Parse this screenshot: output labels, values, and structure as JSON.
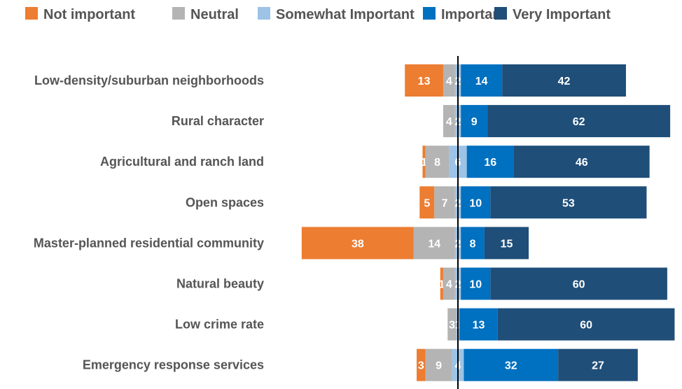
{
  "chart_data": {
    "type": "bar",
    "orientation": "horizontal-diverging",
    "stacked": true,
    "legend_position": "top",
    "categories": [
      "Low-density/suburban neighborhoods",
      "Rural character",
      "Agricultural and ranch land",
      "Open spaces",
      "Master-planned residential community",
      "Natural beauty",
      "Low crime rate",
      "Emergency response services"
    ],
    "series": [
      {
        "name": "Not important",
        "color": "#ED7D31",
        "values": [
          13,
          0,
          1,
          5,
          38,
          1,
          0,
          3
        ],
        "labels": [
          "13",
          "",
          "1",
          "5",
          "38",
          "1",
          "",
          "3"
        ]
      },
      {
        "name": "Neutral",
        "color": "#B4B4B4",
        "values": [
          4,
          4,
          8,
          7,
          14,
          4,
          3,
          9
        ],
        "labels": [
          "4",
          "4",
          "8",
          "7",
          "14",
          "4",
          "3",
          "9"
        ]
      },
      {
        "name": "Somewhat Important",
        "color": "#9DC3E6",
        "values": [
          2,
          2,
          6,
          2,
          2,
          2,
          1,
          4
        ],
        "labels": [
          "2",
          "2",
          "6",
          "2",
          "2",
          "2",
          "1",
          "4"
        ]
      },
      {
        "name": "Important",
        "color": "#0070C0",
        "values": [
          14,
          9,
          16,
          10,
          8,
          10,
          13,
          32
        ],
        "labels": [
          "14",
          "9",
          "16",
          "10",
          "8",
          "10",
          "13",
          "32"
        ]
      },
      {
        "name": "Very Important",
        "color": "#1F4E79",
        "values": [
          42,
          62,
          46,
          53,
          15,
          60,
          60,
          27
        ],
        "labels": [
          "42",
          "62",
          "46",
          "53",
          "15",
          "60",
          "60",
          "27"
        ]
      }
    ]
  }
}
